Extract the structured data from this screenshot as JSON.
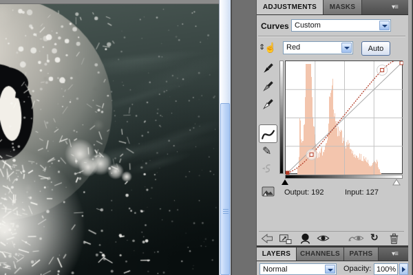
{
  "document_canvas": {
    "description": "dark teal night scene with large moon, penguin silhouette and white paint splatter",
    "colors": {
      "sky_top": "#4a5854",
      "sky_mid": "#2e3a38",
      "sky_bottom": "#0d1414",
      "moon_light": "#e4dfd6",
      "splatter": "#faf9f4",
      "top_strip": "#8b8b8b"
    }
  },
  "adjustments_panel": {
    "tabs": [
      {
        "label": "ADJUSTMENTS",
        "active": true
      },
      {
        "label": "MASKS",
        "active": false
      }
    ],
    "panel_menu_icon": "panel-menu-icon",
    "preset_label": "Curves",
    "preset_value": "Custom",
    "channel_value": "Red",
    "auto_label": "Auto",
    "tool_icons": [
      "on-image-adjustment-tool",
      "black-point-eyedropper",
      "gray-point-eyedropper",
      "white-point-eyedropper",
      "edit-points-tool",
      "pencil-tool",
      "smooth-curve-tool"
    ],
    "curve": {
      "color": "#b23b26",
      "histogram_color": "#f3c5ad",
      "points": [
        [
          0,
          0
        ],
        [
          56,
          45
        ],
        [
          209,
          235
        ],
        [
          255,
          255
        ]
      ],
      "selected_indices": [
        1,
        2
      ],
      "histogram_peaks": [
        [
          0.185,
          0.012,
          1.15
        ],
        [
          0.21,
          0.022,
          0.65
        ],
        [
          0.17,
          0.035,
          0.4
        ],
        [
          0.12,
          0.005,
          0.35
        ],
        [
          0.31,
          0.05,
          0.2
        ],
        [
          0.385,
          0.016,
          0.45
        ],
        [
          0.405,
          0.035,
          0.3
        ],
        [
          0.47,
          0.05,
          0.22
        ],
        [
          0.56,
          0.07,
          0.16
        ],
        [
          0.68,
          0.05,
          0.09
        ],
        [
          0.765,
          0.02,
          0.1
        ]
      ]
    },
    "readout": {
      "output_label": "Output:",
      "output_value": "192",
      "input_label": "Input:",
      "input_value": "127",
      "clip_icon": "adjustment-affects-layers-icon"
    },
    "footer_icons": [
      "return-to-adjustment-list-icon",
      "switch-panel-view-icon",
      "clip-to-layer-icon",
      "toggle-visibility-icon",
      "view-previous-state-icon",
      "reset-adjustment-icon",
      "delete-adjustment-icon"
    ],
    "reset_glyph": "↻"
  },
  "layers_panel": {
    "tabs": [
      {
        "label": "LAYERS",
        "active": true
      },
      {
        "label": "CHANNELS",
        "active": false
      },
      {
        "label": "PATHS",
        "active": false
      }
    ],
    "blend_mode": "Normal",
    "opacity_label": "Opacity:",
    "opacity_value": "100%"
  },
  "scrubby_glyphs": {
    "arrows": "⇕",
    "hand": "☝"
  },
  "pencil_glyph": "✎",
  "menu_glyph": "▾≡"
}
